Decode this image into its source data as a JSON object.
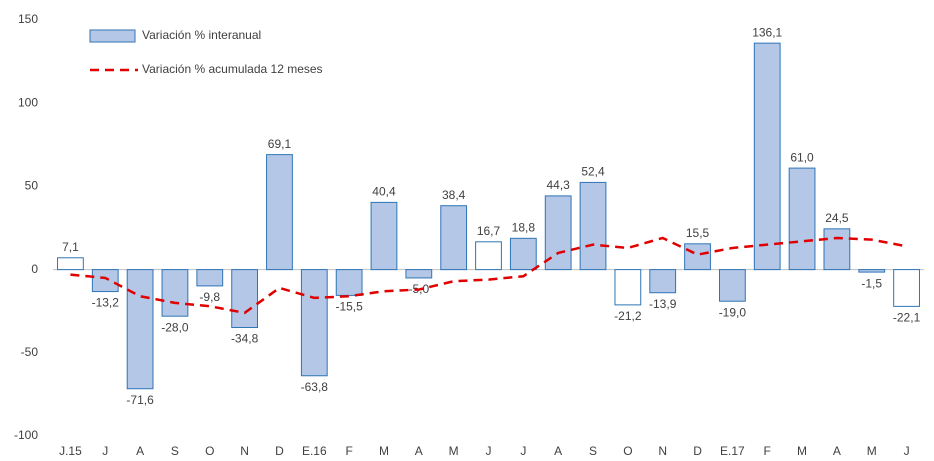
{
  "chart_data": {
    "type": "bar-line",
    "categories": [
      "J.15",
      "J",
      "A",
      "S",
      "O",
      "N",
      "D",
      "E.16",
      "F",
      "M",
      "A",
      "M",
      "J",
      "J",
      "A",
      "S",
      "O",
      "N",
      "D",
      "E.17",
      "F",
      "M",
      "A",
      "M",
      "J"
    ],
    "series": [
      {
        "name": "Variación % interanual",
        "type": "bar",
        "color": "#b4c7e7",
        "edgecolor": "#2e75b6",
        "fills": [
          "#ffffff",
          "#b4c7e7",
          "#b4c7e7",
          "#b4c7e7",
          "#b4c7e7",
          "#b4c7e7",
          "#b4c7e7",
          "#b4c7e7",
          "#b4c7e7",
          "#b4c7e7",
          "#b4c7e7",
          "#b4c7e7",
          "#ffffff",
          "#b4c7e7",
          "#b4c7e7",
          "#b4c7e7",
          "#ffffff",
          "#b4c7e7",
          "#b4c7e7",
          "#b4c7e7",
          "#b4c7e7",
          "#b4c7e7",
          "#b4c7e7",
          "#b4c7e7",
          "#ffffff"
        ],
        "values": [
          7.1,
          -13.2,
          -71.6,
          -28.0,
          -9.8,
          -34.8,
          69.1,
          -63.8,
          -15.5,
          40.4,
          -5.0,
          38.4,
          16.7,
          18.8,
          44.3,
          52.4,
          -21.2,
          -13.9,
          15.5,
          -19.0,
          136.1,
          61.0,
          24.5,
          -1.5,
          -22.1
        ],
        "value_labels": [
          "7,1",
          "-13,2",
          "-71,6",
          "-28,0",
          "-9,8",
          "-34,8",
          "69,1",
          "-63,8",
          "-15,5",
          "40,4",
          "-5,0",
          "38,4",
          "16,7",
          "18,8",
          "44,3",
          "52,4",
          "-21,2",
          "-13,9",
          "15,5",
          "-19,0",
          "136,1",
          "61,0",
          "24,5",
          "-1,5",
          "-22,1"
        ]
      },
      {
        "name": "Variación % acumulada 12 meses",
        "type": "line",
        "color": "#e00000",
        "dashed": true,
        "values": [
          -3,
          -5,
          -16,
          -20,
          -22,
          -26,
          -11,
          -17,
          -16,
          -13,
          -12,
          -7,
          -6,
          -4,
          10,
          15,
          13,
          19,
          9,
          13,
          15,
          17,
          19,
          18,
          14
        ]
      }
    ],
    "ylim": [
      -100,
      150
    ],
    "yticks": [
      -100,
      -50,
      0,
      50,
      100,
      150
    ],
    "grid": false
  }
}
